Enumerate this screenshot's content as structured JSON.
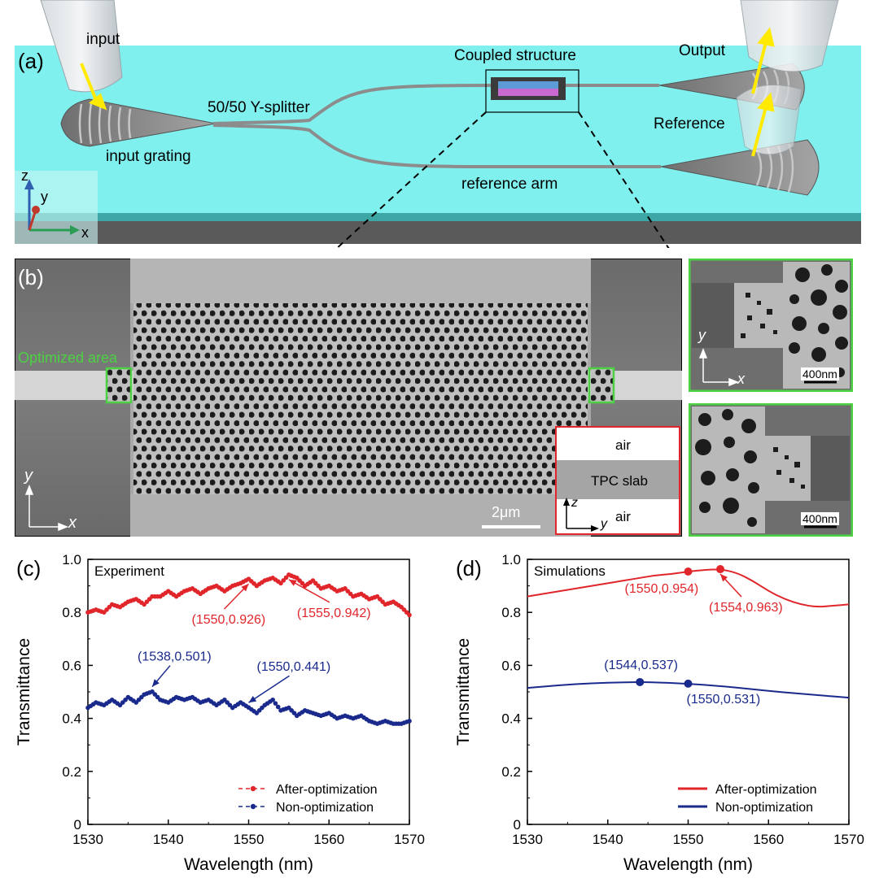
{
  "panel_a": {
    "label": "(a)",
    "input": "input",
    "input_grating": "input grating",
    "splitter": "50/50 Y-splitter",
    "coupled": "Coupled structure",
    "output": "Output",
    "reference": "Reference",
    "reference_arm": "reference arm",
    "axis_z": "z",
    "axis_y": "y",
    "axis_x": "x"
  },
  "panel_b": {
    "label": "(b)",
    "optimized_area": "Optimized area",
    "axis_y": "y",
    "axis_x": "x",
    "scale": "2μm",
    "inset_air_top": "air",
    "inset_slab": "TPC slab",
    "inset_air_bottom": "air",
    "inset_axis_z": "z",
    "inset_axis_y": "y",
    "zoom_axis_y": "y",
    "zoom_axis_x": "x",
    "zoom_scale_top": "400nm",
    "zoom_scale_bottom": "400nm"
  },
  "colors": {
    "red": "#e0262b",
    "blue": "#1a2a8c",
    "cyan": "#7ff0ee",
    "green": "#4cd142",
    "sem_gray": "#8a8a8a"
  },
  "chart_data": [
    {
      "panel": "(c)",
      "type": "line",
      "annotation": "Experiment",
      "xlabel": "Wavelength (nm)",
      "ylabel": "Transmittance",
      "xlim": [
        1530,
        1570
      ],
      "ylim": [
        0,
        1.0
      ],
      "xticks": [
        "1530",
        "1540",
        "1550",
        "1560",
        "1570"
      ],
      "yticks": [
        "0",
        "0.2",
        "0.4",
        "0.6",
        "0.8",
        "1.0"
      ],
      "legend": "bottom-right",
      "series": [
        {
          "name": "After-optimization",
          "color": "#e0262b",
          "style": "dashed-dots",
          "x": [
            1530,
            1531,
            1532,
            1533,
            1534,
            1535,
            1536,
            1537,
            1538,
            1539,
            1540,
            1541,
            1542,
            1543,
            1544,
            1545,
            1546,
            1547,
            1548,
            1549,
            1550,
            1551,
            1552,
            1553,
            1554,
            1555,
            1556,
            1557,
            1558,
            1559,
            1560,
            1561,
            1562,
            1563,
            1564,
            1565,
            1566,
            1567,
            1568,
            1569,
            1570
          ],
          "y": [
            0.8,
            0.81,
            0.8,
            0.83,
            0.82,
            0.84,
            0.85,
            0.83,
            0.86,
            0.86,
            0.88,
            0.86,
            0.88,
            0.89,
            0.87,
            0.89,
            0.9,
            0.88,
            0.9,
            0.91,
            0.926,
            0.9,
            0.92,
            0.93,
            0.91,
            0.942,
            0.93,
            0.9,
            0.92,
            0.89,
            0.9,
            0.88,
            0.89,
            0.86,
            0.87,
            0.85,
            0.86,
            0.83,
            0.84,
            0.82,
            0.79
          ]
        },
        {
          "name": "Non-optimization",
          "color": "#1a2a8c",
          "style": "dashed-dots",
          "x": [
            1530,
            1531,
            1532,
            1533,
            1534,
            1535,
            1536,
            1537,
            1538,
            1539,
            1540,
            1541,
            1542,
            1543,
            1544,
            1545,
            1546,
            1547,
            1548,
            1549,
            1550,
            1551,
            1552,
            1553,
            1554,
            1555,
            1556,
            1557,
            1558,
            1559,
            1560,
            1561,
            1562,
            1563,
            1564,
            1565,
            1566,
            1567,
            1568,
            1569,
            1570
          ],
          "y": [
            0.44,
            0.46,
            0.45,
            0.47,
            0.45,
            0.48,
            0.46,
            0.49,
            0.501,
            0.47,
            0.46,
            0.48,
            0.47,
            0.48,
            0.46,
            0.47,
            0.45,
            0.47,
            0.44,
            0.46,
            0.441,
            0.42,
            0.45,
            0.47,
            0.43,
            0.44,
            0.41,
            0.43,
            0.42,
            0.41,
            0.42,
            0.4,
            0.41,
            0.4,
            0.41,
            0.39,
            0.38,
            0.39,
            0.38,
            0.38,
            0.39
          ]
        }
      ],
      "annotations": [
        {
          "text": "(1550,0.926)",
          "x": 1550,
          "y": 0.926,
          "color": "#e0262b"
        },
        {
          "text": "(1555,0.942)",
          "x": 1555,
          "y": 0.942,
          "color": "#e0262b"
        },
        {
          "text": "(1538,0.501)",
          "x": 1538,
          "y": 0.501,
          "color": "#1a2a8c"
        },
        {
          "text": "(1550,0.441)",
          "x": 1550,
          "y": 0.441,
          "color": "#1a2a8c"
        }
      ]
    },
    {
      "panel": "(d)",
      "type": "line",
      "annotation": "Simulations",
      "xlabel": "Wavelength (nm)",
      "ylabel": "Transmittance",
      "xlim": [
        1530,
        1570
      ],
      "ylim": [
        0,
        1.0
      ],
      "xticks": [
        "1530",
        "1540",
        "1550",
        "1560",
        "1570"
      ],
      "yticks": [
        "0",
        "0.2",
        "0.4",
        "0.6",
        "0.8",
        "1.0"
      ],
      "legend": "bottom-right",
      "series": [
        {
          "name": "After-optimization",
          "color": "#e0262b",
          "style": "solid",
          "x": [
            1530,
            1532,
            1534,
            1536,
            1538,
            1540,
            1542,
            1544,
            1546,
            1548,
            1550,
            1552,
            1554,
            1556,
            1558,
            1560,
            1562,
            1564,
            1566,
            1568,
            1570
          ],
          "y": [
            0.86,
            0.87,
            0.88,
            0.89,
            0.9,
            0.91,
            0.92,
            0.93,
            0.94,
            0.945,
            0.954,
            0.96,
            0.963,
            0.95,
            0.92,
            0.88,
            0.85,
            0.83,
            0.82,
            0.825,
            0.83
          ]
        },
        {
          "name": "Non-optimization",
          "color": "#1a2a8c",
          "style": "solid",
          "x": [
            1530,
            1534,
            1538,
            1542,
            1544,
            1546,
            1550,
            1554,
            1558,
            1562,
            1566,
            1570
          ],
          "y": [
            0.515,
            0.525,
            0.533,
            0.536,
            0.537,
            0.536,
            0.531,
            0.522,
            0.51,
            0.498,
            0.488,
            0.478
          ]
        }
      ],
      "annotations": [
        {
          "text": "(1550,0.954)",
          "x": 1550,
          "y": 0.954,
          "color": "#e0262b"
        },
        {
          "text": "(1554,0.963)",
          "x": 1554,
          "y": 0.963,
          "color": "#e0262b"
        },
        {
          "text": "(1544,0.537)",
          "x": 1544,
          "y": 0.537,
          "color": "#1a2a8c"
        },
        {
          "text": "(1550,0.531)",
          "x": 1550,
          "y": 0.531,
          "color": "#1a2a8c"
        }
      ]
    }
  ]
}
